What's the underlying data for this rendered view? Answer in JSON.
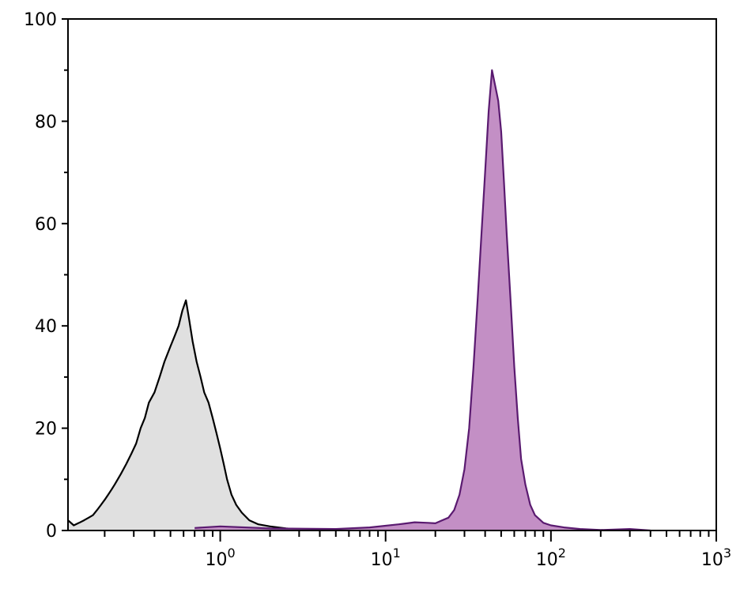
{
  "chart_data": {
    "type": "area",
    "title": "",
    "xlabel": "",
    "ylabel": "",
    "x_scale": "log",
    "xlim": [
      0.12,
      1000
    ],
    "ylim": [
      0,
      100
    ],
    "grid": false,
    "legend": "none",
    "y_ticks": [
      {
        "value": 0,
        "label": "0"
      },
      {
        "value": 20,
        "label": "20"
      },
      {
        "value": 40,
        "label": "40"
      },
      {
        "value": 60,
        "label": "60"
      },
      {
        "value": 80,
        "label": "80"
      },
      {
        "value": 100,
        "label": "100"
      }
    ],
    "x_ticks": [
      {
        "value": 1,
        "base": "10",
        "exp": "0"
      },
      {
        "value": 10,
        "base": "10",
        "exp": "1"
      },
      {
        "value": 100,
        "base": "10",
        "exp": "2"
      },
      {
        "value": 1000,
        "base": "10",
        "exp": "3"
      }
    ],
    "series": [
      {
        "fill": "#e0e0e0",
        "stroke": "#000000",
        "points": [
          [
            0.12,
            2
          ],
          [
            0.13,
            1
          ],
          [
            0.14,
            1.5
          ],
          [
            0.15,
            2
          ],
          [
            0.16,
            2.5
          ],
          [
            0.17,
            3
          ],
          [
            0.18,
            4
          ],
          [
            0.19,
            5
          ],
          [
            0.2,
            6
          ],
          [
            0.21,
            7
          ],
          [
            0.22,
            8
          ],
          [
            0.23,
            9
          ],
          [
            0.25,
            11
          ],
          [
            0.27,
            13
          ],
          [
            0.29,
            15
          ],
          [
            0.31,
            17
          ],
          [
            0.33,
            20
          ],
          [
            0.35,
            22
          ],
          [
            0.37,
            25
          ],
          [
            0.4,
            27
          ],
          [
            0.43,
            30
          ],
          [
            0.46,
            33
          ],
          [
            0.5,
            36
          ],
          [
            0.53,
            38
          ],
          [
            0.56,
            40
          ],
          [
            0.59,
            43
          ],
          [
            0.62,
            45
          ],
          [
            0.65,
            41
          ],
          [
            0.68,
            37
          ],
          [
            0.72,
            33
          ],
          [
            0.76,
            30
          ],
          [
            0.8,
            27
          ],
          [
            0.85,
            25
          ],
          [
            0.9,
            22
          ],
          [
            0.95,
            19
          ],
          [
            1.0,
            16
          ],
          [
            1.05,
            13
          ],
          [
            1.1,
            10
          ],
          [
            1.17,
            7
          ],
          [
            1.25,
            5
          ],
          [
            1.35,
            3.5
          ],
          [
            1.5,
            2
          ],
          [
            1.7,
            1.2
          ],
          [
            2.0,
            0.8
          ],
          [
            2.5,
            0.4
          ],
          [
            3.0,
            0.2
          ],
          [
            4.0,
            0
          ]
        ]
      },
      {
        "fill": "#c38fc5",
        "stroke": "#5a1a70",
        "points": [
          [
            0.7,
            0.5
          ],
          [
            1.0,
            0.8
          ],
          [
            2.0,
            0.4
          ],
          [
            5.0,
            0.3
          ],
          [
            8.0,
            0.6
          ],
          [
            12,
            1.2
          ],
          [
            15,
            1.6
          ],
          [
            18,
            1.5
          ],
          [
            20,
            1.4
          ],
          [
            22,
            2
          ],
          [
            24,
            2.5
          ],
          [
            26,
            4
          ],
          [
            28,
            7
          ],
          [
            30,
            12
          ],
          [
            32,
            20
          ],
          [
            34,
            32
          ],
          [
            36,
            45
          ],
          [
            38,
            58
          ],
          [
            40,
            70
          ],
          [
            42,
            82
          ],
          [
            44,
            90
          ],
          [
            46,
            87
          ],
          [
            48,
            84
          ],
          [
            50,
            78
          ],
          [
            52,
            68
          ],
          [
            54,
            58
          ],
          [
            57,
            45
          ],
          [
            60,
            32
          ],
          [
            63,
            22
          ],
          [
            66,
            14
          ],
          [
            70,
            9
          ],
          [
            75,
            5
          ],
          [
            80,
            3
          ],
          [
            90,
            1.5
          ],
          [
            100,
            1
          ],
          [
            120,
            0.6
          ],
          [
            150,
            0.3
          ],
          [
            200,
            0.1
          ],
          [
            300,
            0.3
          ],
          [
            400,
            0
          ]
        ]
      }
    ]
  }
}
